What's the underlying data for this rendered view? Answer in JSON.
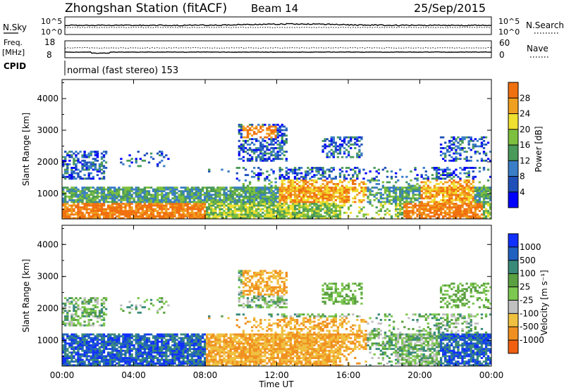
{
  "header": {
    "station": "Zhongshan Station (fitACF)",
    "beam": "Beam 14",
    "date": "25/Sep/2015"
  },
  "noise_panel": {
    "left_label": "N.Sky",
    "left_ticks": [
      "10^5",
      "10^0"
    ],
    "right_label": "N.Search",
    "right_ticks": [
      "10^5",
      "10^0"
    ]
  },
  "freq_panel": {
    "left_label_1": "Freq.",
    "left_label_2": "[MHz]",
    "left_ticks": [
      "18",
      "8"
    ],
    "right_label": "Nave",
    "right_ticks": [
      "60",
      "0"
    ]
  },
  "cpid": {
    "label": "CPID",
    "value": "normal (fast stereo) 153"
  },
  "colors": {
    "power": [
      "#0000ff",
      "#1f4fb8",
      "#3a7ec8",
      "#4a9a5a",
      "#7dbf3e",
      "#f0e030",
      "#f0a020",
      "#f07010",
      "#e03010",
      "#ff0000"
    ],
    "velocity": [
      "#1030ff",
      "#2060c0",
      "#3a8a7a",
      "#5aa040",
      "#7dc850",
      "#c0c0c0",
      "#f0c040",
      "#f09020",
      "#f06010",
      "#ff0000"
    ]
  },
  "chart_data": [
    {
      "type": "heatmap",
      "name": "power-panel",
      "xlabel": "Time UT",
      "ylabel": "Slant Range [km]",
      "x_ticks": [
        "00:00",
        "04:00",
        "08:00",
        "12:00",
        "16:00",
        "20:00",
        "00:00"
      ],
      "y_ticks": [
        1000,
        2000,
        3000,
        4000
      ],
      "ylim": [
        200,
        4600
      ],
      "xlim_hours": [
        0,
        24
      ],
      "colorbar": {
        "label": "Power [dB]",
        "ticks": [
          4,
          8,
          12,
          16,
          20,
          24,
          28
        ]
      }
    },
    {
      "type": "heatmap",
      "name": "velocity-panel",
      "xlabel": "Time UT",
      "ylabel": "Slant Range [km]",
      "x_ticks": [
        "00:00",
        "04:00",
        "08:00",
        "12:00",
        "16:00",
        "20:00",
        "00:00"
      ],
      "y_ticks": [
        1000,
        2000,
        3000,
        4000
      ],
      "ylim": [
        200,
        4600
      ],
      "xlim_hours": [
        0,
        24
      ],
      "colorbar": {
        "label": "Velocity [m s⁻¹]",
        "ticks": [
          1000,
          500,
          100,
          25,
          -25,
          -100,
          -500,
          -1000
        ]
      }
    }
  ],
  "x_axis_title": "Time UT"
}
